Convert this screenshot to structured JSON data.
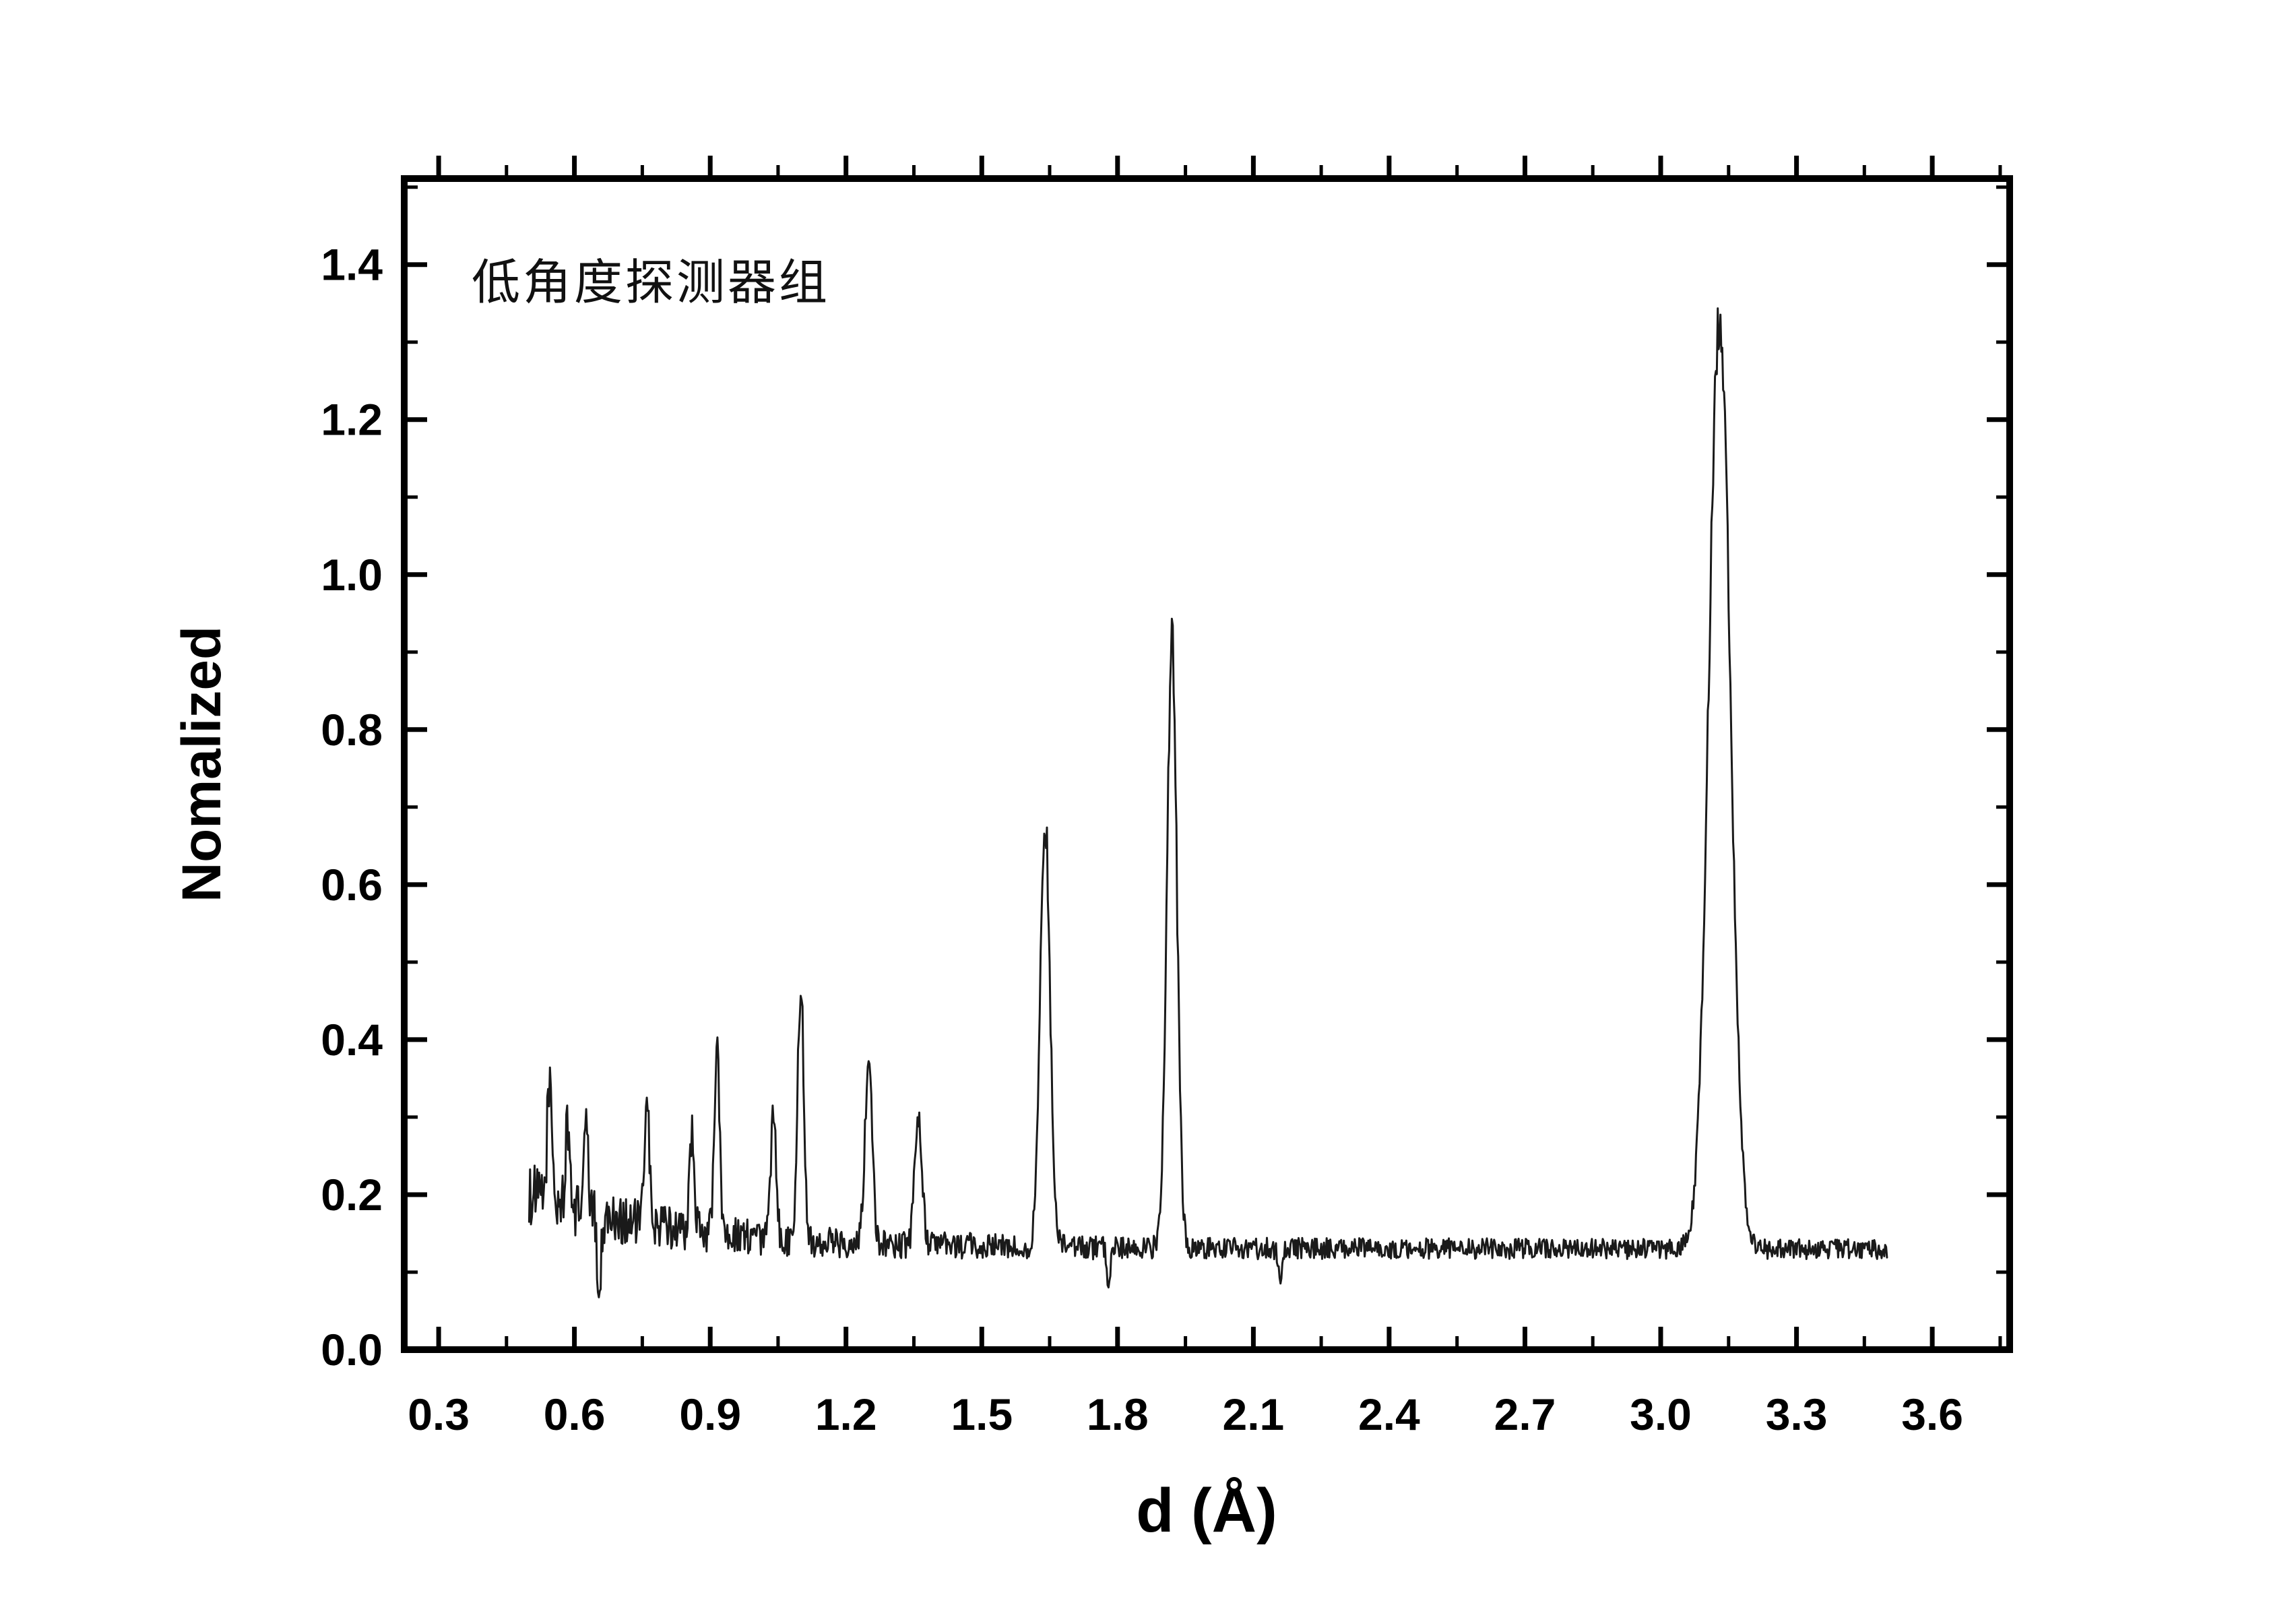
{
  "annotation": "低角度探测器组",
  "axes": {
    "xlabel": "d (Å)",
    "ylabel": "Nomalized",
    "xlim": [
      0.224,
      3.771
    ],
    "ylim": [
      0.0,
      1.511
    ],
    "x_ticks": [
      0.3,
      0.6,
      0.9,
      1.2,
      1.5,
      1.8,
      2.1,
      2.4,
      2.7,
      3.0,
      3.3,
      3.6
    ],
    "y_ticks": [
      0.0,
      0.2,
      0.4,
      0.6,
      0.8,
      1.0,
      1.2,
      1.4
    ],
    "x_minor_step": 0.15,
    "y_minor_step": 0.1,
    "frame_color": "#000000",
    "grid": false,
    "legend": false
  },
  "chart_data": {
    "type": "line",
    "title": "",
    "xlabel": "d (Å)",
    "ylabel": "Nomalized",
    "color": "#1a1a1a",
    "x_start": 0.5,
    "x_end": 3.5,
    "x_step": 0.002,
    "baseline": {
      "level": 0.13,
      "amp": 0.07,
      "decay": 3.0
    },
    "noise": {
      "amp_base": 0.013,
      "amp_extra": 0.028,
      "decay": 2.0,
      "seed": 1234,
      "peak_jitter": 0.045
    },
    "peaks": [
      {
        "center": 0.545,
        "height": 0.16,
        "width": 0.005
      },
      {
        "center": 0.585,
        "height": 0.1,
        "width": 0.005
      },
      {
        "center": 0.625,
        "height": 0.11,
        "width": 0.005
      },
      {
        "center": 0.76,
        "height": 0.17,
        "width": 0.005
      },
      {
        "center": 0.86,
        "height": 0.13,
        "width": 0.005
      },
      {
        "center": 0.915,
        "height": 0.23,
        "width": 0.006
      },
      {
        "center": 1.04,
        "height": 0.16,
        "width": 0.006
      },
      {
        "center": 1.1,
        "height": 0.32,
        "width": 0.007
      },
      {
        "center": 1.25,
        "height": 0.24,
        "width": 0.008
      },
      {
        "center": 1.36,
        "height": 0.165,
        "width": 0.008
      },
      {
        "center": 1.64,
        "height": 0.54,
        "width": 0.011
      },
      {
        "center": 1.92,
        "height": 0.79,
        "width": 0.011
      },
      {
        "center": 3.13,
        "height": 1.2,
        "width": 0.024
      }
    ],
    "dips": [
      {
        "center": 0.655,
        "depth": 0.11,
        "width": 0.004
      },
      {
        "center": 1.78,
        "depth": 0.065,
        "width": 0.004
      },
      {
        "center": 2.16,
        "depth": 0.05,
        "width": 0.004
      }
    ]
  }
}
